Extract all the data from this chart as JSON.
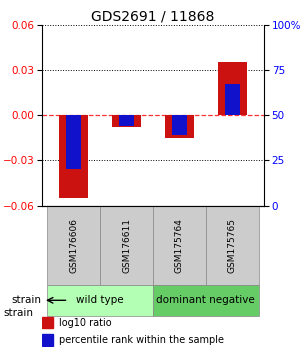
{
  "title": "GDS2691 / 11868",
  "samples": [
    "GSM176606",
    "GSM176611",
    "GSM175764",
    "GSM175765"
  ],
  "log10_ratio": [
    -0.055,
    -0.008,
    -0.015,
    0.035
  ],
  "percentile_rank": [
    20.0,
    44.0,
    39.0,
    67.0
  ],
  "ylim_left": [
    -0.06,
    0.06
  ],
  "ylim_right": [
    0,
    100
  ],
  "yticks_left": [
    -0.06,
    -0.03,
    0,
    0.03,
    0.06
  ],
  "yticks_right": [
    0,
    25,
    50,
    75,
    100
  ],
  "ytick_labels_right": [
    "0",
    "25",
    "50",
    "75",
    "100%"
  ],
  "groups": [
    {
      "label": "wild type",
      "samples": [
        0,
        1
      ],
      "color": "#b3ffb3"
    },
    {
      "label": "dominant negative",
      "samples": [
        2,
        3
      ],
      "color": "#66cc66"
    }
  ],
  "strain_label": "strain",
  "legend": [
    {
      "color": "#cc1111",
      "label": "log10 ratio"
    },
    {
      "color": "#1111cc",
      "label": "percentile rank within the sample"
    }
  ],
  "bar_width": 0.55,
  "blue_bar_width": 0.28,
  "red_color": "#cc1111",
  "blue_color": "#1111cc",
  "title_fontsize": 10,
  "tick_fontsize": 7.5,
  "sample_fontsize": 6.5,
  "group_fontsize": 7.5,
  "legend_fontsize": 7,
  "strain_fontsize": 7.5
}
